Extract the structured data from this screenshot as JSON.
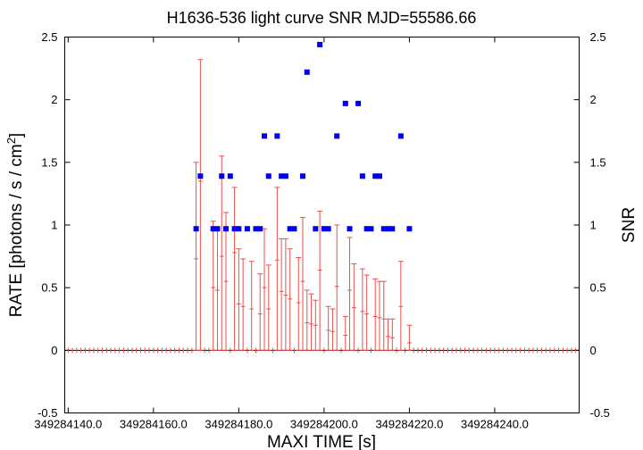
{
  "chart_data": {
    "type": "scatter",
    "title": "H1636-536 light curve  SNR MJD=55586.66",
    "xlabel": "MAXI TIME [s]",
    "ylabel": "RATE [photons / s / cm",
    "ylabel_sup": "2",
    "ylabel_close": "]",
    "y2label": "SNR",
    "xlim": [
      349284139.2,
      349284259.8
    ],
    "ylim": [
      -0.5,
      2.5
    ],
    "y2lim": [
      -0.5,
      2.5
    ],
    "x_tick_values": [
      349284140,
      349284160,
      349284180,
      349284200,
      349284220,
      349284240
    ],
    "x_tick_labels": [
      "349284140.0",
      "349284160.0",
      "349284180.0",
      "349284200.0",
      "349284220.0",
      "349284240.0"
    ],
    "y_tick_values": [
      -0.5,
      0,
      0.5,
      1,
      1.5,
      2,
      2.5
    ],
    "y_tick_labels": [
      "-0.5",
      "0",
      "0.5",
      "1",
      "1.5",
      "2",
      "2.5"
    ],
    "y2_tick_labels": [
      "-0.5",
      "0",
      "0.5",
      "1",
      "1.5",
      "2",
      "2.5"
    ],
    "series": [
      {
        "color": "#e8504a",
        "marker": "errorbar",
        "x": [
          349284140.0,
          349284141.0,
          349284142.0,
          349284143.0,
          349284144.0,
          349284145.0,
          349284146.0,
          349284147.0,
          349284148.0,
          349284149.0,
          349284150.0,
          349284151.0,
          349284152.0,
          349284153.0,
          349284154.0,
          349284155.0,
          349284156.0,
          349284157.0,
          349284158.0,
          349284159.0,
          349284160.0,
          349284161.0,
          349284162.0,
          349284163.0,
          349284164.0,
          349284165.0,
          349284166.0,
          349284167.0,
          349284168.0,
          349284169.0,
          349284170.0,
          349284171.0,
          349284172.0,
          349284173.0,
          349284174.0,
          349284175.0,
          349284176.0,
          349284177.0,
          349284178.0,
          349284179.0,
          349284180.0,
          349284181.0,
          349284182.0,
          349284183.0,
          349284184.0,
          349284185.0,
          349284186.0,
          349284187.0,
          349284188.0,
          349284189.0,
          349284190.0,
          349284191.0,
          349284192.0,
          349284193.0,
          349284194.0,
          349284195.0,
          349284196.0,
          349284197.0,
          349284198.0,
          349284199.0,
          349284200.0,
          349284201.0,
          349284202.0,
          349284203.0,
          349284204.0,
          349284205.0,
          349284206.0,
          349284207.0,
          349284208.0,
          349284209.0,
          349284210.0,
          349284211.0,
          349284212.0,
          349284213.0,
          349284214.0,
          349284215.0,
          349284216.0,
          349284217.0,
          349284218.0,
          349284219.0,
          349284220.0,
          349284221.0,
          349284222.0,
          349284223.0,
          349284224.0,
          349284225.0,
          349284226.0,
          349284227.0,
          349284228.0,
          349284229.0,
          349284230.0,
          349284231.0,
          349284232.0,
          349284233.0,
          349284234.0,
          349284235.0,
          349284236.0,
          349284237.0,
          349284238.0,
          349284239.0,
          349284240.0,
          349284241.0,
          349284242.0,
          349284243.0,
          349284244.0,
          349284245.0,
          349284246.0,
          349284247.0,
          349284248.0,
          349284249.0,
          349284250.0,
          349284251.0,
          349284252.0,
          349284253.0,
          349284254.0,
          349284255.0,
          349284256.0,
          349284257.0,
          349284258.0,
          349284259.0
        ],
        "y": [
          0,
          0,
          0,
          0,
          0,
          0,
          0,
          0,
          0,
          0,
          0,
          0,
          0,
          0,
          0,
          0,
          0,
          0,
          0,
          0,
          0,
          0,
          0,
          0,
          0,
          0,
          0,
          0,
          0,
          0,
          0.73,
          1.35,
          0,
          0,
          0.5,
          0.48,
          0.75,
          0.55,
          0,
          0.78,
          0.37,
          0.35,
          0,
          0.33,
          0,
          0.29,
          0.5,
          0.33,
          0,
          0.72,
          0.47,
          0.44,
          0.41,
          0,
          0.38,
          0.55,
          0.22,
          0.21,
          0.2,
          0.64,
          0,
          0.16,
          0.15,
          0.51,
          0,
          0.12,
          0.48,
          0.34,
          0,
          0.31,
          0.29,
          0,
          0.27,
          0.26,
          0.25,
          0.11,
          0.1,
          0,
          0.35,
          0,
          0.06,
          0,
          0,
          0,
          0,
          0,
          0,
          0,
          0,
          0,
          0,
          0,
          0,
          0,
          0,
          0,
          0,
          0,
          0,
          0,
          0,
          0,
          0,
          0,
          0,
          0,
          0,
          0,
          0,
          0,
          0,
          0,
          0,
          0,
          0,
          0,
          0,
          0,
          0,
          0
        ],
        "err_low": [
          0,
          0,
          0,
          0,
          0,
          0,
          0,
          0,
          0,
          0,
          0,
          0,
          0,
          0,
          0,
          0,
          0,
          0,
          0,
          0,
          0,
          0,
          0,
          0,
          0,
          0,
          0,
          0,
          0,
          0,
          0.73,
          1.35,
          0,
          0,
          0.5,
          0.48,
          0.75,
          0.55,
          0,
          0.78,
          0.37,
          0.35,
          0,
          0.33,
          0,
          0.29,
          0.5,
          0.33,
          0,
          0.72,
          0.47,
          0.44,
          0.41,
          0,
          0.38,
          0.55,
          0.22,
          0.21,
          0.2,
          0.64,
          0,
          0.16,
          0.15,
          0.51,
          0,
          0.12,
          0.48,
          0.34,
          0,
          0.31,
          0.29,
          0,
          0.27,
          0.26,
          0.25,
          0.11,
          0.1,
          0,
          0.35,
          0,
          0.06,
          0,
          0,
          0,
          0,
          0,
          0,
          0,
          0,
          0,
          0,
          0,
          0,
          0,
          0,
          0,
          0,
          0,
          0,
          0,
          0,
          0,
          0,
          0,
          0,
          0,
          0,
          0,
          0,
          0,
          0,
          0,
          0,
          0,
          0,
          0,
          0,
          0,
          0,
          0
        ],
        "err_high": [
          0,
          0,
          0,
          0,
          0,
          0,
          0,
          0,
          0,
          0,
          0,
          0,
          0,
          0,
          0,
          0,
          0,
          0,
          0,
          0,
          0,
          0,
          0,
          0,
          0,
          0,
          0,
          0,
          0,
          0,
          0.77,
          0.97,
          0,
          0,
          0.53,
          0.5,
          0.8,
          0.55,
          0,
          0.52,
          0.44,
          0.38,
          0,
          0.38,
          0,
          0.32,
          0.47,
          0.35,
          0,
          0.58,
          0.42,
          0.45,
          0.4,
          0,
          0.36,
          0.51,
          0.26,
          0.24,
          0.2,
          0.47,
          0,
          0.19,
          0.18,
          0.49,
          0,
          0.15,
          0.42,
          0.35,
          0,
          0.34,
          0.31,
          0,
          0.3,
          0.29,
          0.3,
          0.14,
          0.15,
          0,
          0.36,
          0,
          0.14,
          0,
          0,
          0,
          0,
          0,
          0,
          0,
          0,
          0,
          0,
          0,
          0,
          0,
          0,
          0,
          0,
          0,
          0,
          0,
          0,
          0,
          0,
          0,
          0,
          0,
          0,
          0,
          0,
          0,
          0,
          0,
          0,
          0,
          0,
          0,
          0,
          0,
          0,
          0
        ]
      },
      {
        "color": "#0000ee",
        "marker": "square",
        "axis": "right",
        "x": [
          349284170.0,
          349284171.0,
          349284174.0,
          349284175.0,
          349284176.0,
          349284177.0,
          349284178.0,
          349284179.0,
          349284180.0,
          349284182.0,
          349284184.0,
          349284185.0,
          349284186.0,
          349284187.0,
          349284189.0,
          349284190.0,
          349284191.0,
          349284192.0,
          349284193.0,
          349284195.0,
          349284196.0,
          349284198.0,
          349284199.0,
          349284200.0,
          349284201.0,
          349284203.0,
          349284205.0,
          349284206.0,
          349284208.0,
          349284209.0,
          349284210.0,
          349284211.0,
          349284212.0,
          349284213.0,
          349284214.0,
          349284215.0,
          349284216.0,
          349284218.0,
          349284220.0
        ],
        "y": [
          0.97,
          1.39,
          0.97,
          0.97,
          1.39,
          0.97,
          1.39,
          0.97,
          0.97,
          0.97,
          0.97,
          0.97,
          1.71,
          1.39,
          1.71,
          1.39,
          1.39,
          0.97,
          0.97,
          1.39,
          2.22,
          0.97,
          2.44,
          0.97,
          0.97,
          1.71,
          1.97,
          0.97,
          1.97,
          1.39,
          0.97,
          0.97,
          1.39,
          1.39,
          0.97,
          0.97,
          0.97,
          1.71,
          0.97
        ]
      }
    ]
  }
}
